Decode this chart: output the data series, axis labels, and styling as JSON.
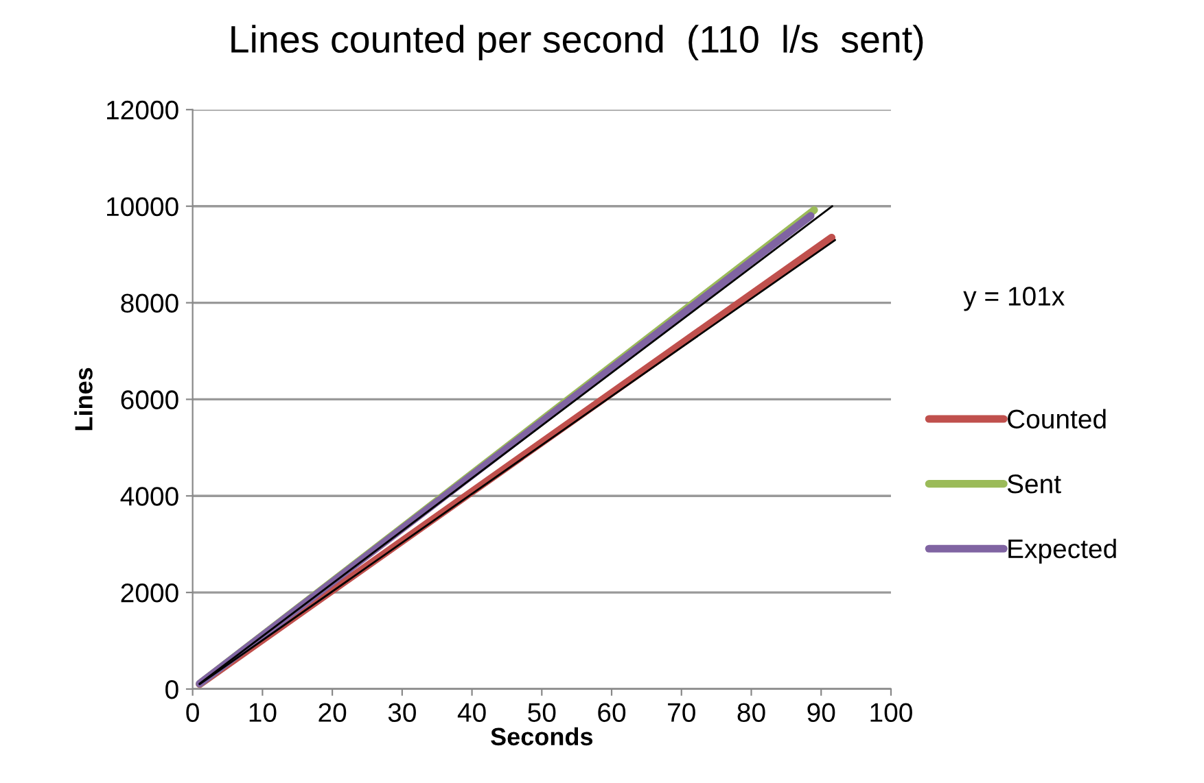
{
  "chart_data": {
    "type": "line",
    "title": "Lines counted per second  (110  l/s  sent)",
    "xlabel": "Seconds",
    "ylabel": "Lines",
    "xlim": [
      0,
      100
    ],
    "xticks": [
      0,
      10,
      20,
      30,
      40,
      50,
      60,
      70,
      80,
      90,
      100
    ],
    "ylim": [
      0,
      12000
    ],
    "yticks": [
      0,
      2000,
      4000,
      6000,
      8000,
      10000,
      12000
    ],
    "grid": "y",
    "legend": "right",
    "marker": "none",
    "line_style": "solid",
    "annotations": [
      "y = 101x"
    ],
    "series": [
      {
        "name": "Counted",
        "color": "#c0504d",
        "x": [
          1,
          91.5
        ],
        "values": [
          101,
          9350
        ]
      },
      {
        "name": "Sent",
        "color": "#9bbb59",
        "x": [
          1,
          89
        ],
        "values": [
          110,
          9920
        ]
      },
      {
        "name": "Expected",
        "color": "#8064a2",
        "x": [
          1,
          88.5
        ],
        "values": [
          110,
          9800
        ]
      },
      {
        "color": "#000000",
        "x": [
          1,
          92
        ],
        "values": [
          101,
          9300
        ]
      },
      {
        "color": "#000000",
        "x": [
          1,
          91.6
        ],
        "values": [
          110,
          10000
        ]
      }
    ]
  }
}
